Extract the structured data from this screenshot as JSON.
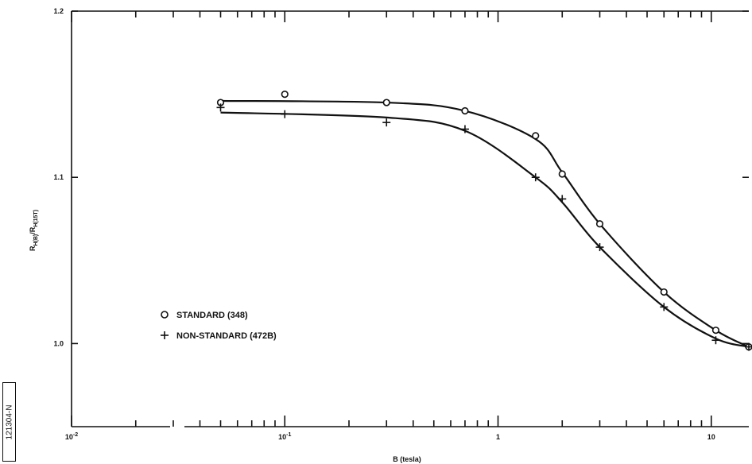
{
  "figure_id": "121304-N",
  "chart_data": {
    "type": "scatter",
    "xscale": "log",
    "xlim": [
      0.01,
      15
    ],
    "ylim": [
      0.95,
      1.2
    ],
    "xlabel": "B (tesla)",
    "ylabel": {
      "main": "R",
      "sub1": "H(B)",
      "sep": "/R",
      "sub2": "H(15T)"
    },
    "x_tick_labels": [
      {
        "value": 0.01,
        "base": "10",
        "exp": "-2"
      },
      {
        "value": 0.1,
        "base": "10",
        "exp": "-1"
      },
      {
        "value": 1,
        "base": "1",
        "exp": ""
      },
      {
        "value": 10,
        "base": "10",
        "exp": ""
      }
    ],
    "y_tick_labels": [
      {
        "value": 1.2,
        "label": "1.2"
      },
      {
        "value": 1.1,
        "label": "1.1"
      },
      {
        "value": 1.0,
        "label": "1.0"
      }
    ],
    "legend_position": "center-left",
    "series": [
      {
        "name": "STANDARD (348)",
        "marker": "circle",
        "x": [
          0.05,
          0.1,
          0.3,
          0.7,
          1.5,
          2.0,
          3.0,
          6.0,
          10.5,
          15.0
        ],
        "y": [
          1.145,
          1.15,
          1.145,
          1.14,
          1.125,
          1.102,
          1.072,
          1.031,
          1.008,
          0.998
        ]
      },
      {
        "name": "NON-STANDARD (472B)",
        "marker": "plus",
        "x": [
          0.05,
          0.1,
          0.3,
          0.7,
          1.5,
          2.0,
          3.0,
          6.0,
          10.5,
          15.0
        ],
        "y": [
          1.142,
          1.138,
          1.133,
          1.129,
          1.1,
          1.087,
          1.058,
          1.022,
          1.002,
          0.998
        ]
      }
    ]
  }
}
